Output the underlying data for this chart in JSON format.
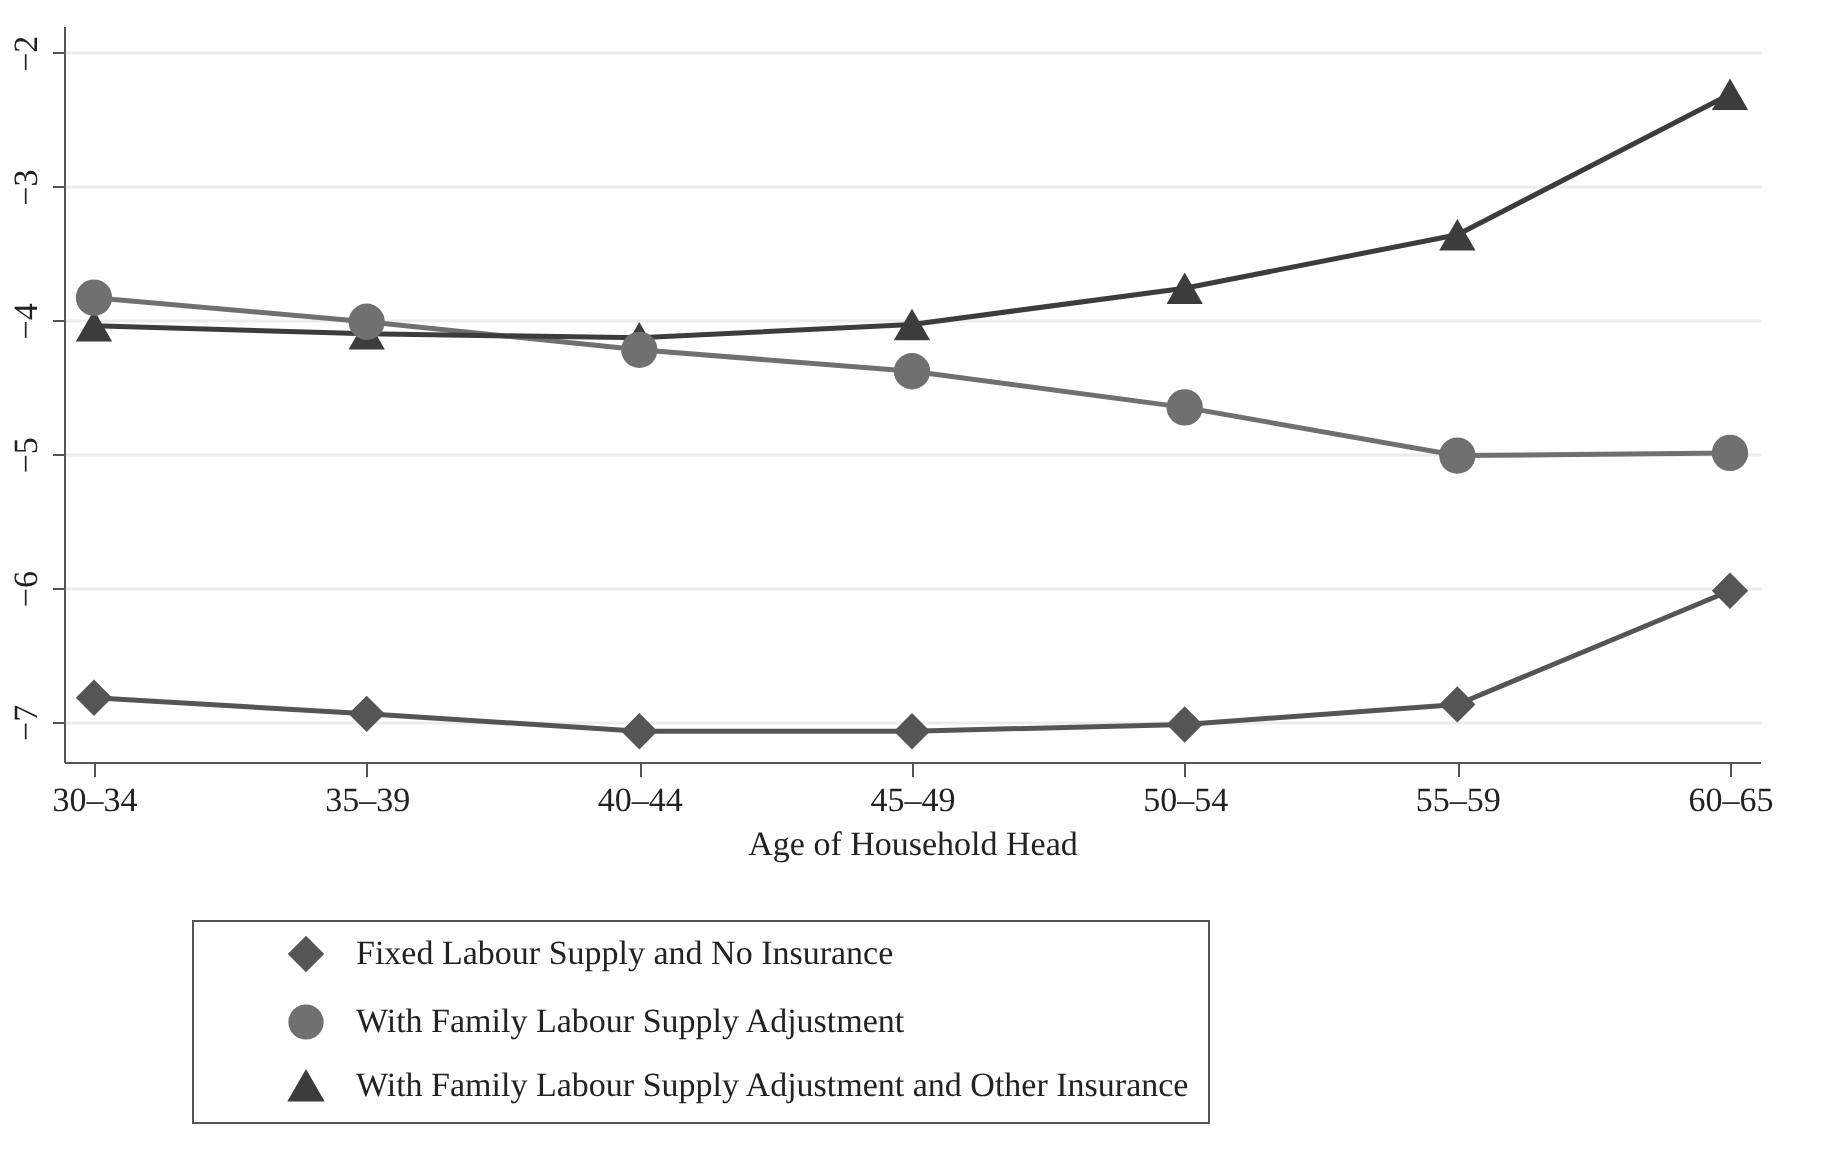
{
  "chart_data": {
    "type": "line",
    "xlabel": "Age of Household Head",
    "categories": [
      "30–34",
      "35–39",
      "40–44",
      "45–49",
      "50–54",
      "55–59",
      "60–65"
    ],
    "ylim": [
      -7.3,
      -1.8
    ],
    "yticks": [
      -7,
      -6,
      -5,
      -4,
      -3,
      -2
    ],
    "grid": "y",
    "legend": "bottom",
    "line_style": "solid",
    "series": [
      {
        "name": "Fixed Labour Supply and No Insurance",
        "color": "#555555",
        "marker": "diamond",
        "values": [
          -6.82,
          -6.94,
          -7.07,
          -7.07,
          -7.02,
          -6.87,
          -6.02
        ]
      },
      {
        "name": "With Family Labour Supply Adjustment",
        "color": "#707070",
        "marker": "circle",
        "values": [
          -3.83,
          -4.01,
          -4.22,
          -4.38,
          -4.65,
          -5.01,
          -4.99
        ]
      },
      {
        "name": "With Family Labour Supply Adjustment and Other Insurance",
        "color": "#3c3c3c",
        "marker": "triangle",
        "values": [
          -4.04,
          -4.1,
          -4.13,
          -4.03,
          -3.76,
          -3.36,
          -2.31
        ]
      }
    ]
  }
}
